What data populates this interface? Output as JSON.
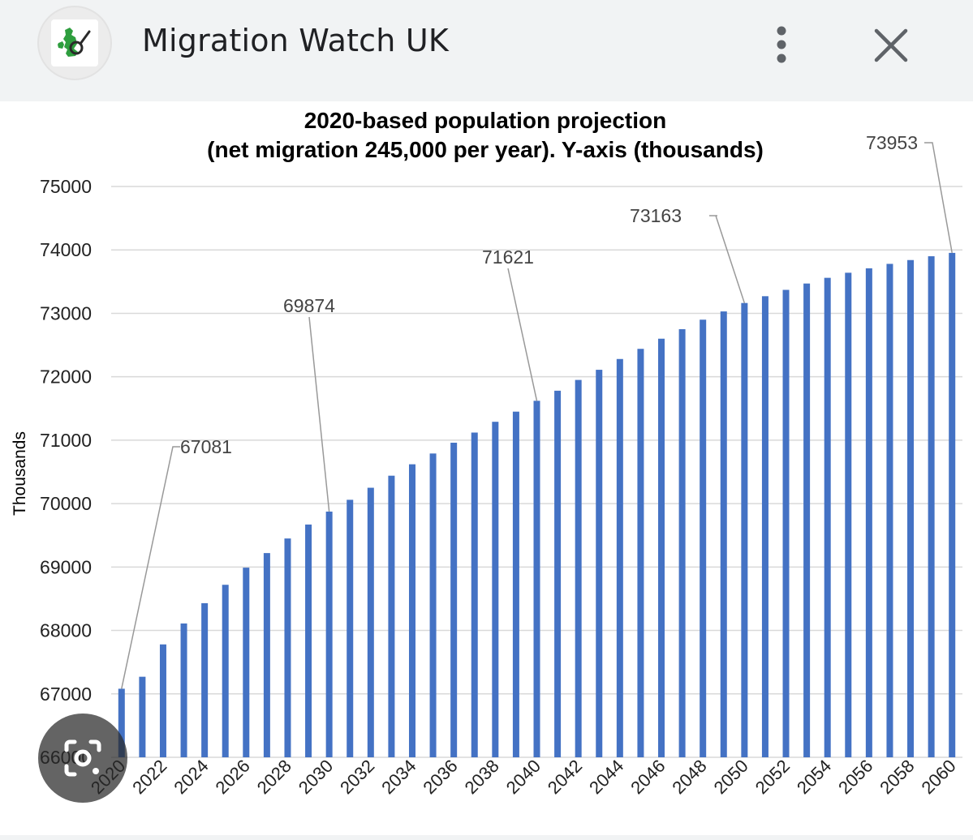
{
  "header": {
    "title": "Migration Watch UK",
    "icon": "migration-watch-logo",
    "more_icon": "more-vert-icon",
    "close_icon": "close-icon"
  },
  "lens": {
    "icon": "google-lens-icon"
  },
  "chart_data": {
    "type": "bar",
    "title_line1": "2020-based population projection",
    "title_line2": "(net migration 245,000 per year). Y-axis (thousands)",
    "xlabel": "",
    "ylabel": "Thousands",
    "ylim": [
      66000,
      75000
    ],
    "yticks": [
      "66000",
      "67000",
      "68000",
      "69000",
      "70000",
      "71000",
      "72000",
      "73000",
      "74000",
      "75000"
    ],
    "grid": true,
    "bar_color": "#4472c4",
    "categories": [
      "2020",
      "2021",
      "2022",
      "2023",
      "2024",
      "2025",
      "2026",
      "2027",
      "2028",
      "2029",
      "2030",
      "2031",
      "2032",
      "2033",
      "2034",
      "2035",
      "2036",
      "2037",
      "2038",
      "2039",
      "2040",
      "2041",
      "2042",
      "2043",
      "2044",
      "2045",
      "2046",
      "2047",
      "2048",
      "2049",
      "2050",
      "2051",
      "2052",
      "2053",
      "2054",
      "2055",
      "2056",
      "2057",
      "2058",
      "2059",
      "2060"
    ],
    "values": [
      67081,
      67270,
      67780,
      68110,
      68430,
      68720,
      68990,
      69220,
      69450,
      69670,
      69874,
      70060,
      70250,
      70440,
      70620,
      70790,
      70960,
      71120,
      71290,
      71450,
      71621,
      71780,
      71950,
      72110,
      72280,
      72440,
      72600,
      72750,
      72900,
      73030,
      73163,
      73270,
      73370,
      73470,
      73560,
      73640,
      73710,
      73780,
      73840,
      73900,
      73953
    ],
    "tick_labels": [
      "2020",
      "2022",
      "2024",
      "2026",
      "2028",
      "2030",
      "2032",
      "2034",
      "2036",
      "2038",
      "2040",
      "2042",
      "2044",
      "2046",
      "2048",
      "2050",
      "2052",
      "2054",
      "2056",
      "2058",
      "2060"
    ],
    "annotations": [
      {
        "category": "2020",
        "label": "67081"
      },
      {
        "category": "2030",
        "label": "69874"
      },
      {
        "category": "2040",
        "label": "71621"
      },
      {
        "category": "2050",
        "label": "73163"
      },
      {
        "category": "2060",
        "label": "73953"
      }
    ]
  }
}
